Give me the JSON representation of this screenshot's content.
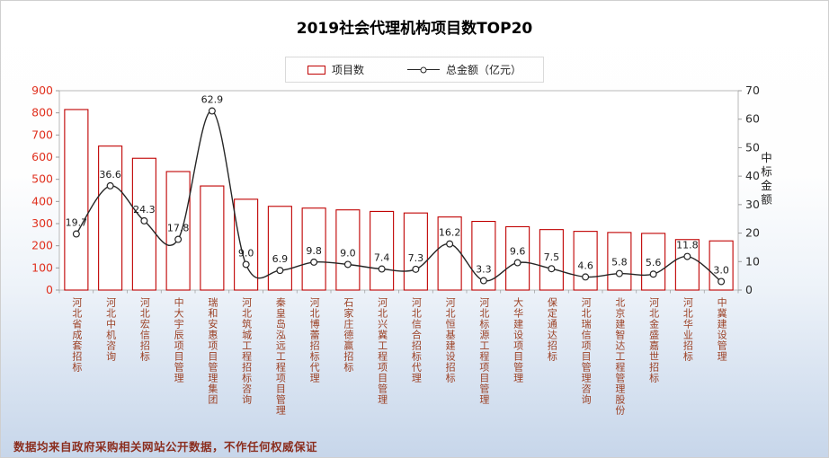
{
  "title": "2019社会代理机构项目数TOP20",
  "legend": {
    "bar_label": "项目数",
    "line_label": "总金额（亿元）"
  },
  "footer": "数据均来自政府采购相关网站公开数据，不作任何权威保证",
  "colors": {
    "bar_outline": "#c00000",
    "bar_fill": "#ffffff",
    "left_axis_text": "#e0301e",
    "right_axis_text": "#2b2b2b",
    "line": "#262626",
    "category_text": "#9c4125",
    "footer_text": "#8b2e1f",
    "plot_border": "#b8b8b8"
  },
  "chart_data": {
    "type": "bar",
    "subtype": "combo bar + line, dual axis",
    "title": "2019社会代理机构项目数TOP20",
    "grid": false,
    "legend_position": "top",
    "categories": [
      "河北省成套招标",
      "河北中机咨询",
      "河北宏信招标",
      "中大宇辰项目管理",
      "瑞和安惠项目管理集团",
      "河北筑城工程招标咨询",
      "秦皇岛泓远工程项目管理",
      "河北博蕾招标代理",
      "石家庄德赢招标",
      "河北兴冀工程项目管理",
      "河北信合招标代理",
      "河北恒基建设招标",
      "河北标源工程项目管理",
      "大华建设项目管理",
      "保定通达招标",
      "河北瑞信项目管理咨询",
      "北京建智达工程管理股份",
      "河北金盛嘉世招标",
      "河北华业招标",
      "中冀建设管理"
    ],
    "series": [
      {
        "name": "项目数",
        "type": "bar",
        "axis": "left",
        "values": [
          815,
          650,
          595,
          535,
          470,
          410,
          378,
          370,
          362,
          355,
          348,
          330,
          310,
          286,
          273,
          265,
          260,
          256,
          228,
          222
        ]
      },
      {
        "name": "总金额（亿元）",
        "type": "line",
        "axis": "right",
        "values": [
          19.7,
          36.6,
          24.3,
          17.8,
          62.9,
          9.0,
          6.9,
          9.8,
          9.0,
          7.4,
          7.3,
          16.2,
          3.3,
          9.6,
          7.5,
          4.6,
          5.8,
          5.6,
          11.8,
          3.0
        ]
      }
    ],
    "left_axis": {
      "min": 0,
      "max": 900,
      "step": 100
    },
    "right_axis": {
      "min": 0,
      "max": 70,
      "step": 10,
      "title": "中标金额"
    }
  }
}
